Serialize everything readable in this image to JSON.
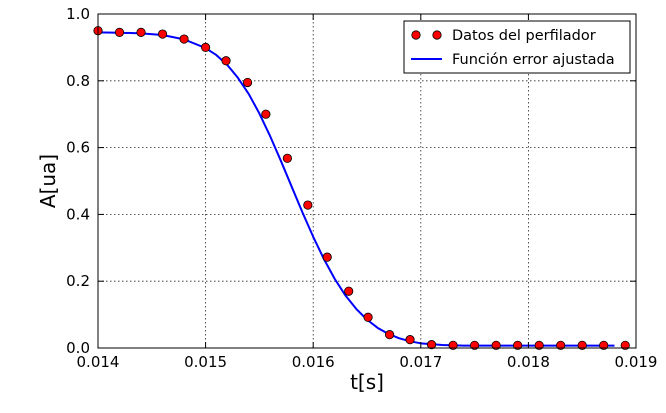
{
  "chart_data": {
    "type": "scatter",
    "title": "",
    "xlabel": "t[s]",
    "ylabel": "A[ua]",
    "xlim": [
      0.014,
      0.019
    ],
    "ylim": [
      0.0,
      1.0
    ],
    "xticks": [
      0.014,
      0.015,
      0.016,
      0.017,
      0.018,
      0.019
    ],
    "xtick_labels": [
      "0.014",
      "0.015",
      "0.016",
      "0.017",
      "0.018",
      "0.019"
    ],
    "yticks": [
      0.0,
      0.2,
      0.4,
      0.6,
      0.8,
      1.0
    ],
    "ytick_labels": [
      "0.0",
      "0.2",
      "0.4",
      "0.6",
      "0.8",
      "1.0"
    ],
    "grid": true,
    "legend_position": "top-right",
    "series": [
      {
        "name": "Datos del perfilador",
        "kind": "markers",
        "color": "#ff0000",
        "edge_color": "#000000",
        "x": [
          0.014,
          0.0142,
          0.0144,
          0.0146,
          0.0148,
          0.015,
          0.01519,
          0.01539,
          0.01556,
          0.01576,
          0.01595,
          0.01613,
          0.01633,
          0.01651,
          0.01671,
          0.0169,
          0.0171,
          0.0173,
          0.0175,
          0.0177,
          0.0179,
          0.0181,
          0.0183,
          0.0185,
          0.0187,
          0.0189
        ],
        "y": [
          0.95,
          0.945,
          0.945,
          0.94,
          0.925,
          0.9,
          0.86,
          0.795,
          0.7,
          0.568,
          0.428,
          0.272,
          0.17,
          0.092,
          0.04,
          0.025,
          0.01,
          0.008,
          0.008,
          0.008,
          0.008,
          0.008,
          0.008,
          0.008,
          0.008,
          0.008
        ]
      },
      {
        "name": "Función error ajustada",
        "kind": "line",
        "color": "#0000ff",
        "x": [
          0.014,
          0.0142,
          0.0144,
          0.0146,
          0.0148,
          0.015,
          0.0151,
          0.0152,
          0.0153,
          0.0154,
          0.0155,
          0.0156,
          0.0157,
          0.0158,
          0.0159,
          0.016,
          0.0161,
          0.0162,
          0.0163,
          0.0164,
          0.0165,
          0.0166,
          0.0167,
          0.0168,
          0.0169,
          0.017,
          0.0172,
          0.0174,
          0.0176,
          0.0178,
          0.018,
          0.0182,
          0.0184,
          0.0186,
          0.0188
        ],
        "y": [
          0.945,
          0.944,
          0.942,
          0.937,
          0.924,
          0.898,
          0.877,
          0.848,
          0.809,
          0.761,
          0.702,
          0.634,
          0.56,
          0.483,
          0.406,
          0.333,
          0.266,
          0.207,
          0.157,
          0.117,
          0.085,
          0.06,
          0.042,
          0.029,
          0.02,
          0.014,
          0.009,
          0.007,
          0.007,
          0.007,
          0.007,
          0.007,
          0.007,
          0.007,
          0.007
        ]
      }
    ]
  }
}
